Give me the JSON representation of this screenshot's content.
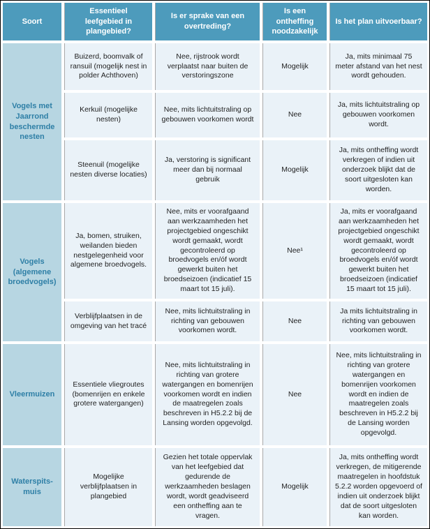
{
  "table": {
    "headers": [
      "Soort",
      "Essentieel leefgebied in plangebied?",
      "Is er sprake van een overtreding?",
      "Is een ontheffing noodzakelijk",
      "Is het plan uitvoerbaar?"
    ],
    "groups": [
      "Vogels met Jaarrond beschermde nesten",
      "Vogels (algemene broedvogels)",
      "Vleermuizen",
      "Waterspits-muis"
    ],
    "rows": [
      {
        "leefgebied": "Buizerd, boomvalk of ransuil (mogelijk nest in polder Achthoven)",
        "overtreding": "Nee, rijstrook wordt verplaatst naar buiten de verstoringszone",
        "ontheffing": "Mogelijk",
        "uitvoerbaar": "Ja, mits minimaal 75 meter afstand van het nest wordt gehouden."
      },
      {
        "leefgebied": "Kerkuil (mogelijke nesten)",
        "overtreding": "Nee, mits lichtuitstraling op gebouwen voorkomen wordt",
        "ontheffing": "Nee",
        "uitvoerbaar": "Ja, mits lichtuitstraling op gebouwen voorkomen wordt."
      },
      {
        "leefgebied": "Steenuil (mogelijke nesten diverse locaties)",
        "overtreding": "Ja, verstoring is significant meer dan bij normaal gebruik",
        "ontheffing": "Mogelijk",
        "uitvoerbaar": "Ja, mits ontheffing wordt verkregen of indien uit onderzoek blijkt dat de soort uitgesloten kan worden."
      },
      {
        "leefgebied": "Ja, bomen, struiken, weilanden bieden nestgelegenheid voor algemene broedvogels.",
        "overtreding": "Nee, mits er voorafgaand aan werkzaamheden het projectgebied ongeschikt wordt gemaakt, wordt gecontroleerd op broedvogels en/óf wordt gewerkt buiten het broedseizoen (indicatief 15 maart tot 15 juli).",
        "ontheffing": "Nee¹",
        "uitvoerbaar": "Ja, mits er voorafgaand aan werkzaamheden het projectgebied ongeschikt wordt gemaakt, wordt gecontroleerd op broedvogels en/óf wordt gewerkt buiten het broedseizoen (indicatief 15 maart tot 15 juli)."
      },
      {
        "leefgebied": "Verblijfplaatsen in de omgeving van het tracé",
        "overtreding": "Nee, mits lichtuitstraling in richting van gebouwen voorkomen wordt.",
        "ontheffing": "Nee",
        "uitvoerbaar": "Ja mits lichtuitstraling in richting van gebouwen voorkomen wordt."
      },
      {
        "leefgebied": "Essentiele vliegroutes (bomenrijen en enkele grotere watergangen)",
        "overtreding": "Nee, mits lichtuitstraling in richting van grotere watergangen en bomenrijen voorkomen wordt en indien de maatregelen zoals beschreven in H5.2.2 bij de Lansing worden opgevolgd.",
        "ontheffing": "Nee",
        "uitvoerbaar": "Nee, mits lichtuitstraling in richting van grotere watergangen en bomenrijen voorkomen wordt en indien de maatregelen zoals beschreven in H5.2.2 bij de Lansing worden opgevolgd."
      },
      {
        "leefgebied": "Mogelijke verblijfplaatsen in plangebied",
        "overtreding": "Gezien het totale oppervlak van het leefgebied dat gedurende de werkzaamheden beslagen wordt, wordt geadviseerd een ontheffing aan te vragen.",
        "ontheffing": "Mogelijk",
        "uitvoerbaar": "Ja, mits ontheffing wordt verkregen, de mitigerende maatregelen in hoofdstuk 5.2.2 worden opgevoerd of indien uit onderzoek blijkt dat de soort uitgesloten kan worden."
      }
    ]
  },
  "colors": {
    "header_bg": "#4d9bbc",
    "header_text": "#ffffff",
    "group_bg": "#b7d6e2",
    "group_text": "#2e7fa6",
    "cell_bg": "#eaf2f8",
    "body_text": "#1f1f1f",
    "divider": "#a8a8a8",
    "page_border": "#000000"
  }
}
